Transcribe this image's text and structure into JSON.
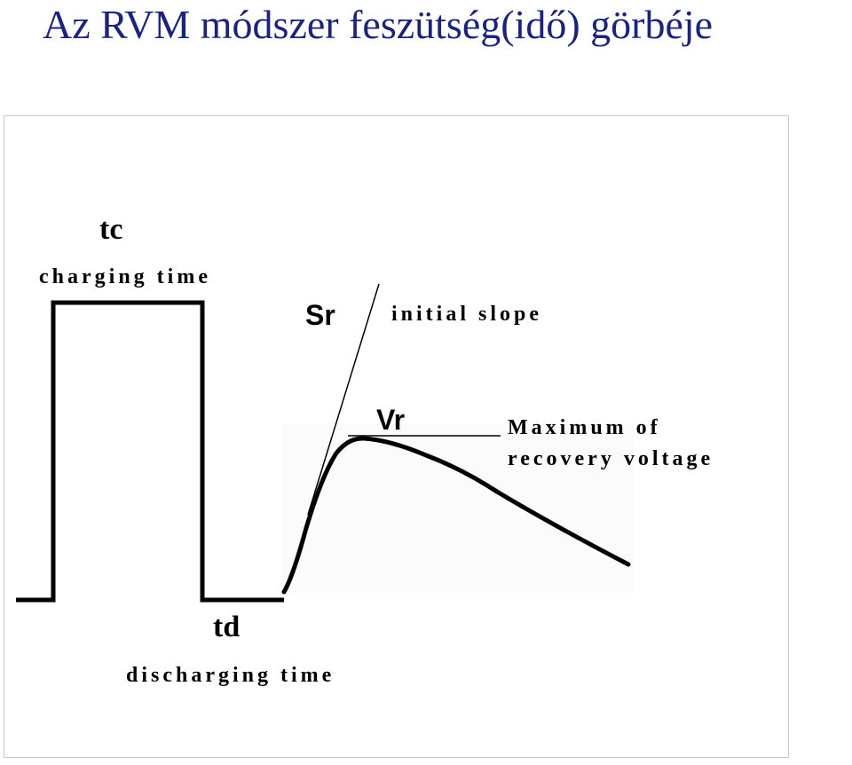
{
  "title": "Az RVM módszer feszütség(idő) görbéje",
  "colors": {
    "title": "#1b2479",
    "line": "#000000",
    "frame_border": "#c8c8c8"
  },
  "labels": {
    "tc": "tc",
    "charging_time": "charging time",
    "sr": "Sr",
    "initial_slope": "initial slope",
    "vr": "Vr",
    "max_recovery_line1": "Maximum of",
    "max_recovery_line2": "recovery voltage",
    "td": "td",
    "discharging_time": "discharging time"
  }
}
